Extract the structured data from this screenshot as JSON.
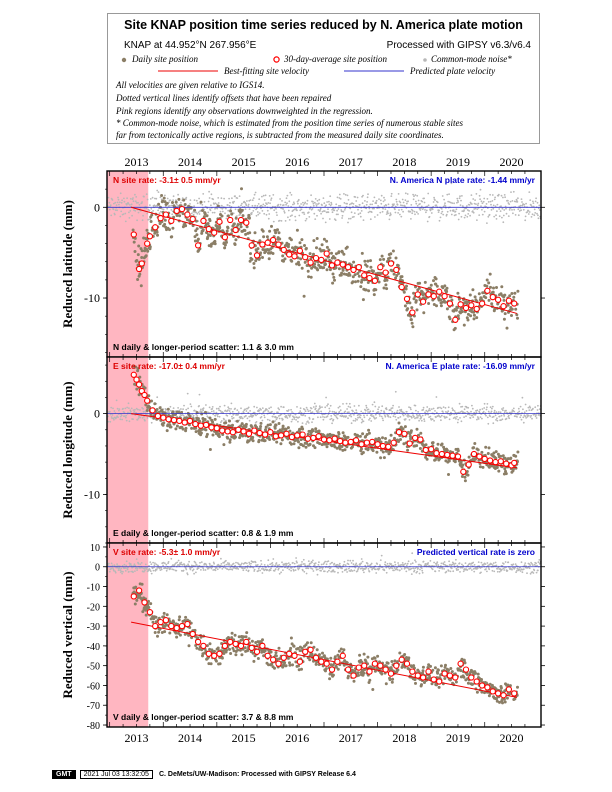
{
  "header": {
    "title": "Site KNAP position time series reduced by N. America plate motion",
    "location": "KNAP at 44.952°N 267.956°E",
    "processing": "Processed with GIPSY v6.3/v6.4",
    "legend": {
      "daily": "Daily site position",
      "avg30": "30-day-average site position",
      "common_mode": "Common-mode noise*",
      "best_fit": "Best-fitting site velocity",
      "predicted": "Predicted plate velocity"
    },
    "notes": [
      "All velocities are given relative to IGS14.",
      "Dotted vertical lines identify offsets that have been repaired",
      "Pink regions identify any observations downweighted in the regression.",
      "* Common-mode noise, which is estimated from the position time series of numerous stable sites",
      "far from tectonically active regions, is subtracted from the measured daily site coordinates."
    ]
  },
  "colors": {
    "daily": "#8b7e66",
    "common_mode": "#b8b8b8",
    "avg_fill": "#ffffff",
    "avg_stroke": "#ff0000",
    "fit_line": "#ee0000",
    "plate_line": "#3333cc",
    "downweight": "#ffb6c1",
    "label_red": "#dd0000",
    "label_blue": "#0000cc"
  },
  "chart_data": [
    {
      "type": "scatter",
      "component": "north",
      "ylabel": "Reduced latitude (mm)",
      "ylim": [
        -16.5,
        4
      ],
      "yticks": [
        0,
        -10
      ],
      "xlim": [
        2012.45,
        2020.55
      ],
      "xticks": [
        2013,
        2014,
        2015,
        2016,
        2017,
        2018,
        2019,
        2020
      ],
      "tick_labels": [
        "2013",
        "2014",
        "2015",
        "2016",
        "2017",
        "2018",
        "2019",
        "2020"
      ],
      "downweight_range": [
        2012.45,
        2013.22
      ],
      "site_rate_label": "N site rate:  -3.1± 0.5 mm/yr",
      "plate_rate_label": "N. America N plate rate:  -1.44 mm/yr",
      "scatter_label": "N daily & longer-period scatter:   1.1 &   3.0 mm",
      "fit_line": {
        "x": [
          2012.9,
          2020.1
        ],
        "y": [
          0.0,
          -11.7
        ]
      },
      "plate_line": {
        "x": [
          2012.45,
          2020.55
        ],
        "y": [
          0.0,
          0.0
        ]
      },
      "avg30": {
        "x": [
          2012.95,
          2013.05,
          2013.1,
          2013.2,
          2013.25,
          2013.35,
          2013.45,
          2013.55,
          2013.65,
          2013.75,
          2013.85,
          2013.95,
          2014.05,
          2014.15,
          2014.25,
          2014.35,
          2014.45,
          2014.55,
          2014.65,
          2014.75,
          2014.85,
          2014.95,
          2015.05,
          2015.15,
          2015.25,
          2015.35,
          2015.45,
          2015.55,
          2015.65,
          2015.75,
          2015.85,
          2015.95,
          2016.05,
          2016.15,
          2016.25,
          2016.35,
          2016.45,
          2016.55,
          2016.65,
          2016.75,
          2016.85,
          2016.95,
          2017.05,
          2017.15,
          2017.25,
          2017.35,
          2017.45,
          2017.55,
          2017.65,
          2017.75,
          2017.85,
          2017.95,
          2018.05,
          2018.15,
          2018.25,
          2018.35,
          2018.45,
          2018.55,
          2018.65,
          2018.75,
          2018.85,
          2018.95,
          2019.05,
          2019.15,
          2019.25,
          2019.35,
          2019.45,
          2019.55,
          2019.65,
          2019.75,
          2019.85,
          2019.95,
          2020.05
        ],
        "y": [
          -3,
          -6.8,
          -6.2,
          -4,
          -3.2,
          -2.2,
          -1.2,
          -0.8,
          -1.5,
          -0.4,
          -0.2,
          -0.8,
          -1.3,
          -4.2,
          -1.5,
          -2.4,
          -2.8,
          -1.6,
          -3.3,
          -1.4,
          -2.5,
          -1.4,
          -1.7,
          -4.2,
          -5.3,
          -4.1,
          -3.9,
          -3.6,
          -4.1,
          -4.7,
          -5.2,
          -5.4,
          -4.8,
          -5.5,
          -6.1,
          -5.6,
          -5.8,
          -5.1,
          -6.4,
          -6.1,
          -6.3,
          -6.6,
          -6.9,
          -6.6,
          -7.5,
          -7.8,
          -8.1,
          -6.6,
          -7.2,
          -6.2,
          -6.9,
          -8.8,
          -10.1,
          -11.6,
          -9.6,
          -10.4,
          -9.6,
          -9.8,
          -9.3,
          -9.8,
          -10.6,
          -12.4,
          -10.7,
          -11.1,
          -10.8,
          -11.2,
          -10.6,
          -9.2,
          -9.9,
          -10.2,
          -10.9,
          -10.3,
          -10.6
        ]
      }
    },
    {
      "type": "scatter",
      "component": "east",
      "ylabel": "Reduced longitude (mm)",
      "ylim": [
        -16,
        7
      ],
      "yticks": [
        0,
        -10
      ],
      "xlim": [
        2012.45,
        2020.55
      ],
      "xticks": [
        2013,
        2014,
        2015,
        2016,
        2017,
        2018,
        2019,
        2020
      ],
      "tick_labels": [
        "2013",
        "2014",
        "2015",
        "2016",
        "2017",
        "2018",
        "2019",
        "2020"
      ],
      "downweight_range": [
        2012.45,
        2013.22
      ],
      "site_rate_label": "E site rate:  -17.0± 0.4 mm/yr",
      "plate_rate_label": "N. America E plate rate:  -16.09 mm/yr",
      "scatter_label": "E daily & longer-period scatter:   0.8 &   1.9 mm",
      "fit_line": {
        "x": [
          2012.9,
          2020.1
        ],
        "y": [
          0.0,
          -6.7
        ]
      },
      "plate_line": {
        "x": [
          2012.45,
          2020.55
        ],
        "y": [
          0.0,
          0.0
        ]
      },
      "avg30": {
        "x": [
          2012.95,
          2013.0,
          2013.05,
          2013.1,
          2013.15,
          2013.2,
          2013.3,
          2013.4,
          2013.5,
          2013.6,
          2013.7,
          2013.8,
          2013.9,
          2014.0,
          2014.1,
          2014.2,
          2014.3,
          2014.4,
          2014.5,
          2014.6,
          2014.7,
          2014.8,
          2014.9,
          2015.0,
          2015.1,
          2015.2,
          2015.3,
          2015.4,
          2015.5,
          2015.6,
          2015.7,
          2015.8,
          2015.9,
          2016.0,
          2016.1,
          2016.2,
          2016.3,
          2016.4,
          2016.5,
          2016.6,
          2016.7,
          2016.8,
          2016.9,
          2017.0,
          2017.1,
          2017.2,
          2017.3,
          2017.4,
          2017.5,
          2017.6,
          2017.7,
          2017.8,
          2017.9,
          2018.0,
          2018.1,
          2018.2,
          2018.3,
          2018.4,
          2018.5,
          2018.6,
          2018.7,
          2018.8,
          2018.9,
          2019.0,
          2019.1,
          2019.2,
          2019.3,
          2019.4,
          2019.5,
          2019.6,
          2019.7,
          2019.8,
          2019.9,
          2020.0,
          2020.05
        ],
        "y": [
          4.8,
          4.2,
          3.6,
          2.8,
          2.3,
          1.6,
          0.4,
          -0.3,
          -0.5,
          -0.7,
          -0.8,
          -0.9,
          -1.1,
          -0.9,
          -1.3,
          -1.5,
          -1.4,
          -1.7,
          -1.8,
          -2.1,
          -2.2,
          -2.3,
          -2.0,
          -2.2,
          -2.5,
          -2.1,
          -2.4,
          -2.6,
          -2.3,
          -2.8,
          -2.7,
          -2.5,
          -2.9,
          -2.7,
          -2.6,
          -3.1,
          -3.0,
          -2.8,
          -3.2,
          -3.3,
          -3.1,
          -3.4,
          -3.6,
          -3.5,
          -3.3,
          -3.8,
          -3.6,
          -3.5,
          -3.8,
          -4.0,
          -4.1,
          -3.6,
          -2.3,
          -2.5,
          -3.7,
          -3.0,
          -3.2,
          -4.5,
          -4.4,
          -4.9,
          -5.0,
          -5.1,
          -5.2,
          -5.3,
          -7.2,
          -6.3,
          -5.0,
          -5.3,
          -5.6,
          -5.8,
          -6.0,
          -5.9,
          -6.2,
          -6.4,
          -6.1
        ]
      }
    },
    {
      "type": "scatter",
      "component": "vertical",
      "ylabel": "Reduced vertical (mm)",
      "ylim": [
        -81,
        12
      ],
      "yticks": [
        10,
        0,
        -10,
        -20,
        -30,
        -40,
        -50,
        -60,
        -70,
        -80
      ],
      "xlim": [
        2012.45,
        2020.55
      ],
      "xticks": [
        2013,
        2014,
        2015,
        2016,
        2017,
        2018,
        2019,
        2020
      ],
      "tick_labels": [
        "2013",
        "2014",
        "2015",
        "2016",
        "2017",
        "2018",
        "2019",
        "2020"
      ],
      "downweight_range": [
        2012.45,
        2013.22
      ],
      "site_rate_label": "V site rate:  -5.3± 1.0 mm/yr",
      "plate_rate_label": "Predicted vertical rate is zero",
      "scatter_label": "V daily & longer-period scatter:   3.7 &   8.8 mm",
      "fit_line": {
        "x": [
          2012.9,
          2020.1
        ],
        "y": [
          -28.0,
          -66.0
        ]
      },
      "plate_line": {
        "x": [
          2012.45,
          2020.55
        ],
        "y": [
          0.0,
          0.0
        ]
      },
      "avg30": {
        "x": [
          2012.95,
          2013.05,
          2013.15,
          2013.25,
          2013.35,
          2013.45,
          2013.55,
          2013.65,
          2013.75,
          2013.85,
          2013.95,
          2014.05,
          2014.15,
          2014.25,
          2014.35,
          2014.45,
          2014.55,
          2014.65,
          2014.75,
          2014.85,
          2014.95,
          2015.05,
          2015.15,
          2015.25,
          2015.35,
          2015.45,
          2015.55,
          2015.65,
          2015.75,
          2015.85,
          2015.95,
          2016.05,
          2016.15,
          2016.25,
          2016.35,
          2016.45,
          2016.55,
          2016.65,
          2016.75,
          2016.85,
          2016.95,
          2017.05,
          2017.15,
          2017.25,
          2017.35,
          2017.45,
          2017.55,
          2017.65,
          2017.75,
          2017.85,
          2017.95,
          2018.05,
          2018.15,
          2018.25,
          2018.35,
          2018.45,
          2018.55,
          2018.65,
          2018.75,
          2018.85,
          2018.95,
          2019.05,
          2019.15,
          2019.25,
          2019.35,
          2019.45,
          2019.55,
          2019.65,
          2019.75,
          2019.85,
          2019.95,
          2020.05
        ],
        "y": [
          -15,
          -12,
          -18,
          -23,
          -30,
          -28,
          -27,
          -30,
          -31,
          -30,
          -29,
          -34,
          -38,
          -40,
          -44,
          -45,
          -44,
          -40,
          -38,
          -39,
          -40,
          -38,
          -41,
          -43,
          -40,
          -45,
          -47,
          -49,
          -46,
          -44,
          -45,
          -48,
          -43,
          -42,
          -46,
          -48,
          -49,
          -52,
          -48,
          -45,
          -52,
          -55,
          -51,
          -50,
          -53,
          -49,
          -50,
          -52,
          -54,
          -50,
          -47,
          -49,
          -53,
          -55,
          -56,
          -53,
          -57,
          -58,
          -54,
          -55,
          -56,
          -49,
          -52,
          -56,
          -58,
          -60,
          -61,
          -63,
          -64,
          -65,
          -62,
          -64
        ]
      }
    }
  ],
  "footer": {
    "logo": "GMT",
    "date": "2021 Jul 03 13:32:05",
    "credit": "C. DeMets/UW-Madison: Processed with GIPSY Release 6.4"
  }
}
